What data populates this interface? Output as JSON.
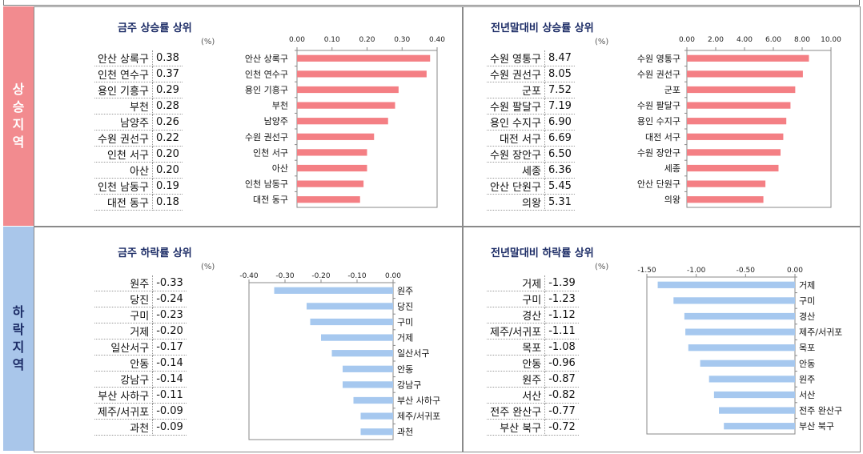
{
  "sections": {
    "up_label": [
      "상",
      "승",
      "지",
      "역"
    ],
    "down_label": [
      "하",
      "락",
      "지",
      "역"
    ]
  },
  "unit": "(%)",
  "colors": {
    "up_bar": "#f47f84",
    "down_bar": "#a6c8ef",
    "title": "#1c2c66"
  },
  "chart_data": [
    {
      "type": "bar",
      "orientation": "horizontal",
      "title": "금주 상승률 상위",
      "unit": "(%)",
      "xlim": [
        0,
        0.4
      ],
      "ticks": [
        0.0,
        0.1,
        0.2,
        0.3,
        0.4
      ],
      "tick_labels": [
        "0.00",
        "0.10",
        "0.20",
        "0.30",
        "0.40"
      ],
      "categories": [
        "안산 상록구",
        "인천 연수구",
        "용인 기흥구",
        "부천",
        "남양주",
        "수원 권선구",
        "인천 서구",
        "아산",
        "인천 남동구",
        "대전 동구"
      ],
      "values": [
        0.38,
        0.37,
        0.29,
        0.28,
        0.26,
        0.22,
        0.2,
        0.2,
        0.19,
        0.18
      ],
      "value_labels": [
        "0.38",
        "0.37",
        "0.29",
        "0.28",
        "0.26",
        "0.22",
        "0.20",
        "0.20",
        "0.19",
        "0.18"
      ]
    },
    {
      "type": "bar",
      "orientation": "horizontal",
      "title": "전년말대비 상승률 상위",
      "unit": "(%)",
      "xlim": [
        0,
        10
      ],
      "ticks": [
        0,
        2,
        4,
        6,
        8,
        10
      ],
      "tick_labels": [
        "0.00",
        "2.00",
        "4.00",
        "6.00",
        "8.00",
        "10.00"
      ],
      "categories": [
        "수원 영통구",
        "수원 권선구",
        "군포",
        "수원 팔달구",
        "용인 수지구",
        "대전 서구",
        "수원 장안구",
        "세종",
        "안산 단원구",
        "의왕"
      ],
      "values": [
        8.47,
        8.05,
        7.52,
        7.19,
        6.9,
        6.69,
        6.5,
        6.36,
        5.45,
        5.31
      ],
      "value_labels": [
        "8.47",
        "8.05",
        "7.52",
        "7.19",
        "6.90",
        "6.69",
        "6.50",
        "6.36",
        "5.45",
        "5.31"
      ]
    },
    {
      "type": "bar",
      "orientation": "horizontal",
      "title": "금주 하락률 상위",
      "unit": "(%)",
      "xlim": [
        -0.4,
        0
      ],
      "ticks": [
        -0.4,
        -0.3,
        -0.2,
        -0.1,
        0
      ],
      "tick_labels": [
        "-0.40",
        "-0.30",
        "-0.20",
        "-0.10",
        "0.00"
      ],
      "categories": [
        "원주",
        "당진",
        "구미",
        "거제",
        "일산서구",
        "안동",
        "강남구",
        "부산 사하구",
        "제주/서귀포",
        "과천"
      ],
      "values": [
        -0.33,
        -0.24,
        -0.23,
        -0.2,
        -0.17,
        -0.14,
        -0.14,
        -0.11,
        -0.09,
        -0.09
      ],
      "value_labels": [
        "-0.33",
        "-0.24",
        "-0.23",
        "-0.20",
        "-0.17",
        "-0.14",
        "-0.14",
        "-0.11",
        "-0.09",
        "-0.09"
      ]
    },
    {
      "type": "bar",
      "orientation": "horizontal",
      "title": "전년말대비 하락률 상위",
      "unit": "(%)",
      "xlim": [
        -1.5,
        0
      ],
      "ticks": [
        -1.5,
        -1.0,
        -0.5,
        0
      ],
      "tick_labels": [
        "-1.50",
        "-1.00",
        "-0.50",
        "0.00"
      ],
      "categories": [
        "거제",
        "구미",
        "경산",
        "제주/서귀포",
        "목포",
        "안동",
        "원주",
        "서산",
        "전주 완산구",
        "부산 북구"
      ],
      "values": [
        -1.39,
        -1.23,
        -1.12,
        -1.11,
        -1.08,
        -0.96,
        -0.87,
        -0.82,
        -0.77,
        -0.72
      ],
      "value_labels": [
        "-1.39",
        "-1.23",
        "-1.12",
        "-1.11",
        "-1.08",
        "-0.96",
        "-0.87",
        "-0.82",
        "-0.77",
        "-0.72"
      ]
    }
  ]
}
